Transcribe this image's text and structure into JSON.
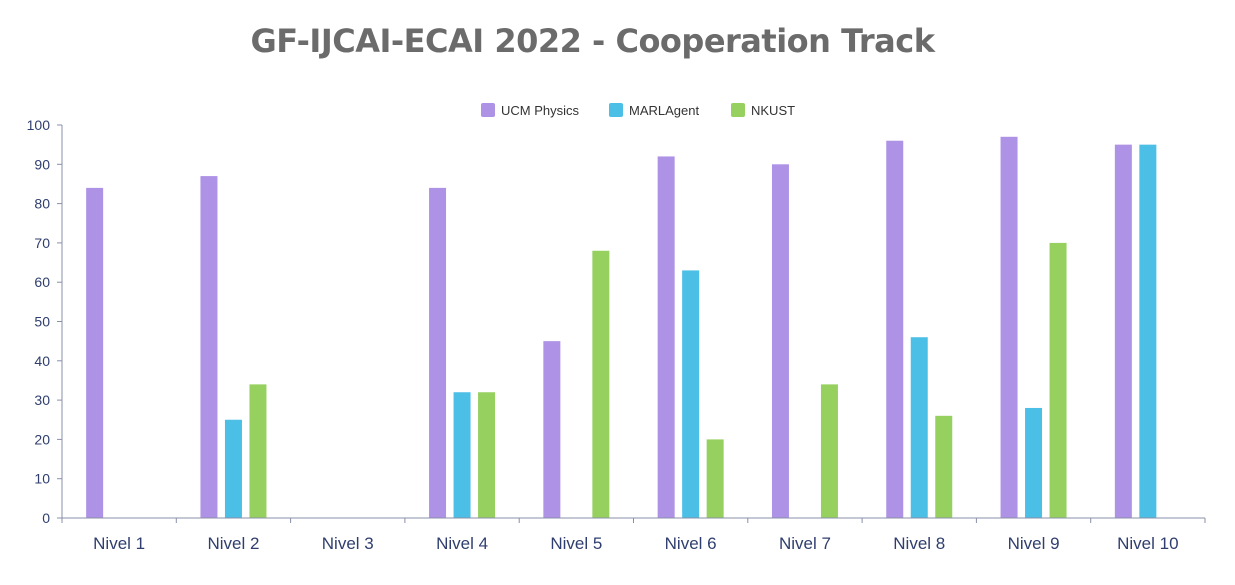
{
  "chart_data": {
    "type": "bar",
    "title": "GF-IJCAI-ECAI 2022 - Cooperation Track",
    "categories": [
      "Nivel 1",
      "Nivel 2",
      "Nivel 3",
      "Nivel 4",
      "Nivel 5",
      "Nivel 6",
      "Nivel 7",
      "Nivel 8",
      "Nivel 9",
      "Nivel 10"
    ],
    "series": [
      {
        "name": "UCM Physics",
        "color": "#ad92e6",
        "values": [
          84,
          87,
          0,
          84,
          45,
          92,
          90,
          96,
          97,
          95
        ]
      },
      {
        "name": "MARLAgent",
        "color": "#4bbfe6",
        "values": [
          0,
          25,
          0,
          32,
          0,
          63,
          0,
          46,
          28,
          95
        ]
      },
      {
        "name": "NKUST",
        "color": "#96d160",
        "values": [
          0,
          34,
          0,
          32,
          68,
          20,
          34,
          26,
          70,
          0
        ]
      }
    ],
    "ylim": [
      0,
      100
    ],
    "yticks": [
      0,
      10,
      20,
      30,
      40,
      50,
      60,
      70,
      80,
      90,
      100
    ],
    "xlabel": "",
    "ylabel": "",
    "legend": "top-center",
    "grid": false
  }
}
